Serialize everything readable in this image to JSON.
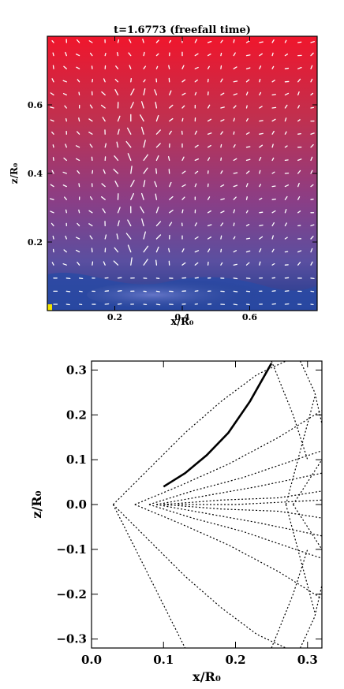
{
  "chart_data": [
    {
      "type": "heatmap",
      "title": "t=1.6773 (freefall time)",
      "xlabel": "x/R₀",
      "ylabel": "z/R₀",
      "xlim": [
        0.0,
        0.8
      ],
      "ylim": [
        0.0,
        0.8
      ],
      "xticks": [
        0.2,
        0.4,
        0.6
      ],
      "yticks": [
        0.2,
        0.4,
        0.6
      ],
      "xtick_labels": [
        "0.2",
        "0.4",
        "0.6"
      ],
      "ytick_labels": [
        "0.2",
        "0.4",
        "0.6"
      ],
      "colormap": [
        "#1c3a8c",
        "#5a4fa0",
        "#8a3e86",
        "#c0304f",
        "#f0162c"
      ],
      "overlay": "velocity vectors (white arrows)",
      "grid": false
    },
    {
      "type": "line",
      "xlabel": "x/R₀",
      "ylabel": "z/R₀",
      "xlim": [
        0.0,
        0.32
      ],
      "ylim": [
        -0.32,
        0.32
      ],
      "xticks": [
        0.0,
        0.1,
        0.2,
        0.3
      ],
      "yticks": [
        -0.3,
        -0.2,
        -0.1,
        0.0,
        0.1,
        0.2,
        0.3
      ],
      "xtick_labels": [
        "0.0",
        "0.1",
        "0.2",
        "0.3"
      ],
      "ytick_labels": [
        "−0.3",
        "−0.2",
        "−0.1",
        "0.0",
        "0.1",
        "0.2",
        "0.3"
      ],
      "grid": false,
      "series": [
        {
          "style": "solid",
          "x": [
            0.1,
            0.13,
            0.16,
            0.19,
            0.22,
            0.25
          ],
          "y": [
            0.04,
            0.07,
            0.11,
            0.16,
            0.23,
            0.315
          ]
        },
        {
          "style": "dotted",
          "x": [
            0.03,
            0.08,
            0.13,
            0.18,
            0.23,
            0.27
          ],
          "y": [
            0.0,
            0.08,
            0.16,
            0.23,
            0.29,
            0.32
          ]
        },
        {
          "style": "dotted",
          "x": [
            0.03,
            0.08,
            0.13,
            0.18,
            0.23,
            0.27
          ],
          "y": [
            0.0,
            -0.08,
            -0.16,
            -0.23,
            -0.29,
            -0.32
          ]
        },
        {
          "style": "dotted",
          "x": [
            0.03,
            0.13
          ],
          "y": [
            0.0,
            -0.32
          ]
        },
        {
          "style": "dotted",
          "x": [
            0.06,
            0.12,
            0.19,
            0.26,
            0.32
          ],
          "y": [
            0.0,
            0.04,
            0.09,
            0.15,
            0.21
          ]
        },
        {
          "style": "dotted",
          "x": [
            0.06,
            0.12,
            0.19,
            0.26,
            0.32
          ],
          "y": [
            0.0,
            -0.04,
            -0.09,
            -0.15,
            -0.21
          ]
        },
        {
          "style": "dotted",
          "x": [
            0.08,
            0.14,
            0.21,
            0.32
          ],
          "y": [
            0.0,
            0.03,
            0.06,
            0.12
          ]
        },
        {
          "style": "dotted",
          "x": [
            0.08,
            0.14,
            0.21,
            0.32
          ],
          "y": [
            0.0,
            -0.03,
            -0.06,
            -0.12
          ]
        },
        {
          "style": "dotted",
          "x": [
            0.09,
            0.16,
            0.23,
            0.32
          ],
          "y": [
            0.0,
            0.02,
            0.04,
            0.07
          ]
        },
        {
          "style": "dotted",
          "x": [
            0.09,
            0.16,
            0.23,
            0.32
          ],
          "y": [
            0.0,
            -0.02,
            -0.04,
            -0.07
          ]
        },
        {
          "style": "dotted",
          "x": [
            0.1,
            0.18,
            0.26,
            0.32
          ],
          "y": [
            0.0,
            0.01,
            0.015,
            0.03
          ]
        },
        {
          "style": "dotted",
          "x": [
            0.1,
            0.18,
            0.26,
            0.32
          ],
          "y": [
            0.0,
            -0.01,
            -0.015,
            -0.03
          ]
        },
        {
          "style": "dotted",
          "x": [
            0.12,
            0.2,
            0.26,
            0.32
          ],
          "y": [
            0.0,
            0.0,
            0.005,
            0.01
          ]
        },
        {
          "style": "dotted",
          "x": [
            0.28,
            0.3,
            0.32
          ],
          "y": [
            0.0,
            0.05,
            0.1
          ]
        },
        {
          "style": "dotted",
          "x": [
            0.28,
            0.3,
            0.32
          ],
          "y": [
            0.0,
            -0.05,
            -0.1
          ]
        },
        {
          "style": "dotted",
          "x": [
            0.27,
            0.29,
            0.31
          ],
          "y": [
            0.0,
            0.12,
            0.24
          ]
        },
        {
          "style": "dotted",
          "x": [
            0.27,
            0.29,
            0.31
          ],
          "y": [
            0.0,
            -0.12,
            -0.24
          ]
        },
        {
          "style": "dotted",
          "x": [
            0.25,
            0.28,
            0.3
          ],
          "y": [
            0.32,
            0.2,
            0.1
          ]
        },
        {
          "style": "dotted",
          "x": [
            0.25,
            0.28,
            0.3
          ],
          "y": [
            -0.32,
            -0.2,
            -0.1
          ]
        },
        {
          "style": "dotted",
          "x": [
            0.29,
            0.31,
            0.32
          ],
          "y": [
            0.32,
            0.25,
            0.18
          ]
        },
        {
          "style": "dotted",
          "x": [
            0.29,
            0.31,
            0.32
          ],
          "y": [
            -0.32,
            -0.25,
            -0.18
          ]
        }
      ]
    }
  ]
}
